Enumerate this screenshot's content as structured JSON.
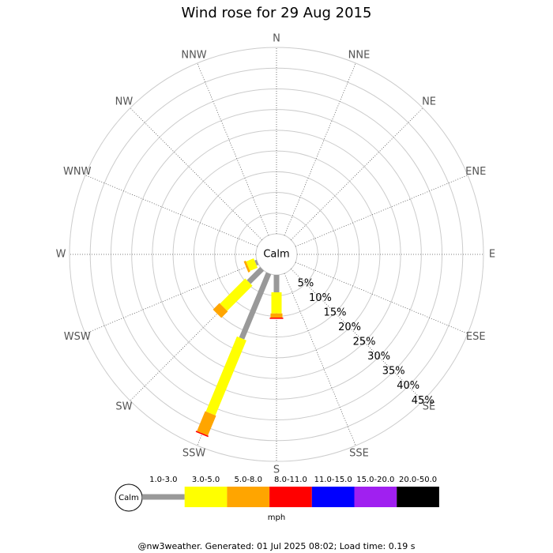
{
  "chart_data": {
    "type": "windrose",
    "title": "Wind rose for 29 Aug 2015",
    "directions": [
      "N",
      "NNE",
      "NE",
      "ENE",
      "E",
      "ESE",
      "SE",
      "SSE",
      "S",
      "SSW",
      "SW",
      "WSW",
      "W",
      "WNW",
      "NW",
      "NNW"
    ],
    "calm_label": "Calm",
    "unit": "mph",
    "rlim": [
      0,
      45
    ],
    "rticks": [
      {
        "value": 5,
        "label": "5%"
      },
      {
        "value": 10,
        "label": "10%"
      },
      {
        "value": 15,
        "label": "15%"
      },
      {
        "value": 20,
        "label": "20%"
      },
      {
        "value": 25,
        "label": "25%"
      },
      {
        "value": 30,
        "label": "30%"
      },
      {
        "value": 35,
        "label": "35%"
      },
      {
        "value": 40,
        "label": "40%"
      },
      {
        "value": 45,
        "label": "45%"
      }
    ],
    "series": [
      {
        "name": "1.0-3.0",
        "color": "#999999",
        "values": [
          0,
          0,
          0,
          0,
          0,
          0,
          0,
          0,
          4.2,
          17,
          4.5,
          0.5,
          0,
          0,
          0,
          0
        ]
      },
      {
        "name": "3.0-5.0",
        "color": "#ffff00",
        "values": [
          0,
          0,
          0,
          0,
          0,
          0,
          0,
          0,
          5.1,
          19.6,
          8.6,
          2,
          0,
          0,
          0,
          0
        ]
      },
      {
        "name": "5.0-8.0",
        "color": "#ffa500",
        "values": [
          0,
          0,
          0,
          0,
          0,
          0,
          0,
          0,
          1,
          5.2,
          2.2,
          0.5,
          0,
          0,
          0,
          0
        ]
      },
      {
        "name": "8.0-11.0",
        "color": "#ff0000",
        "values": [
          0,
          0,
          0,
          0,
          0,
          0,
          0,
          0,
          0.3,
          0.3,
          0,
          0,
          0,
          0,
          0,
          0
        ]
      },
      {
        "name": "11.0-15.0",
        "color": "#0000ff",
        "values": [
          0,
          0,
          0,
          0,
          0,
          0,
          0,
          0,
          0,
          0,
          0,
          0,
          0,
          0,
          0,
          0
        ]
      },
      {
        "name": "15.0-20.0",
        "color": "#a020f0",
        "values": [
          0,
          0,
          0,
          0,
          0,
          0,
          0,
          0,
          0,
          0,
          0,
          0,
          0,
          0,
          0,
          0
        ]
      },
      {
        "name": "20.0-50.0",
        "color": "#000000",
        "values": [
          0,
          0,
          0,
          0,
          0,
          0,
          0,
          0,
          0,
          0,
          0,
          0,
          0,
          0,
          0,
          0
        ]
      }
    ],
    "footer": "@nw3weather. Generated: 01 Jul 2025 08:02; Load time: 0.19 s"
  }
}
